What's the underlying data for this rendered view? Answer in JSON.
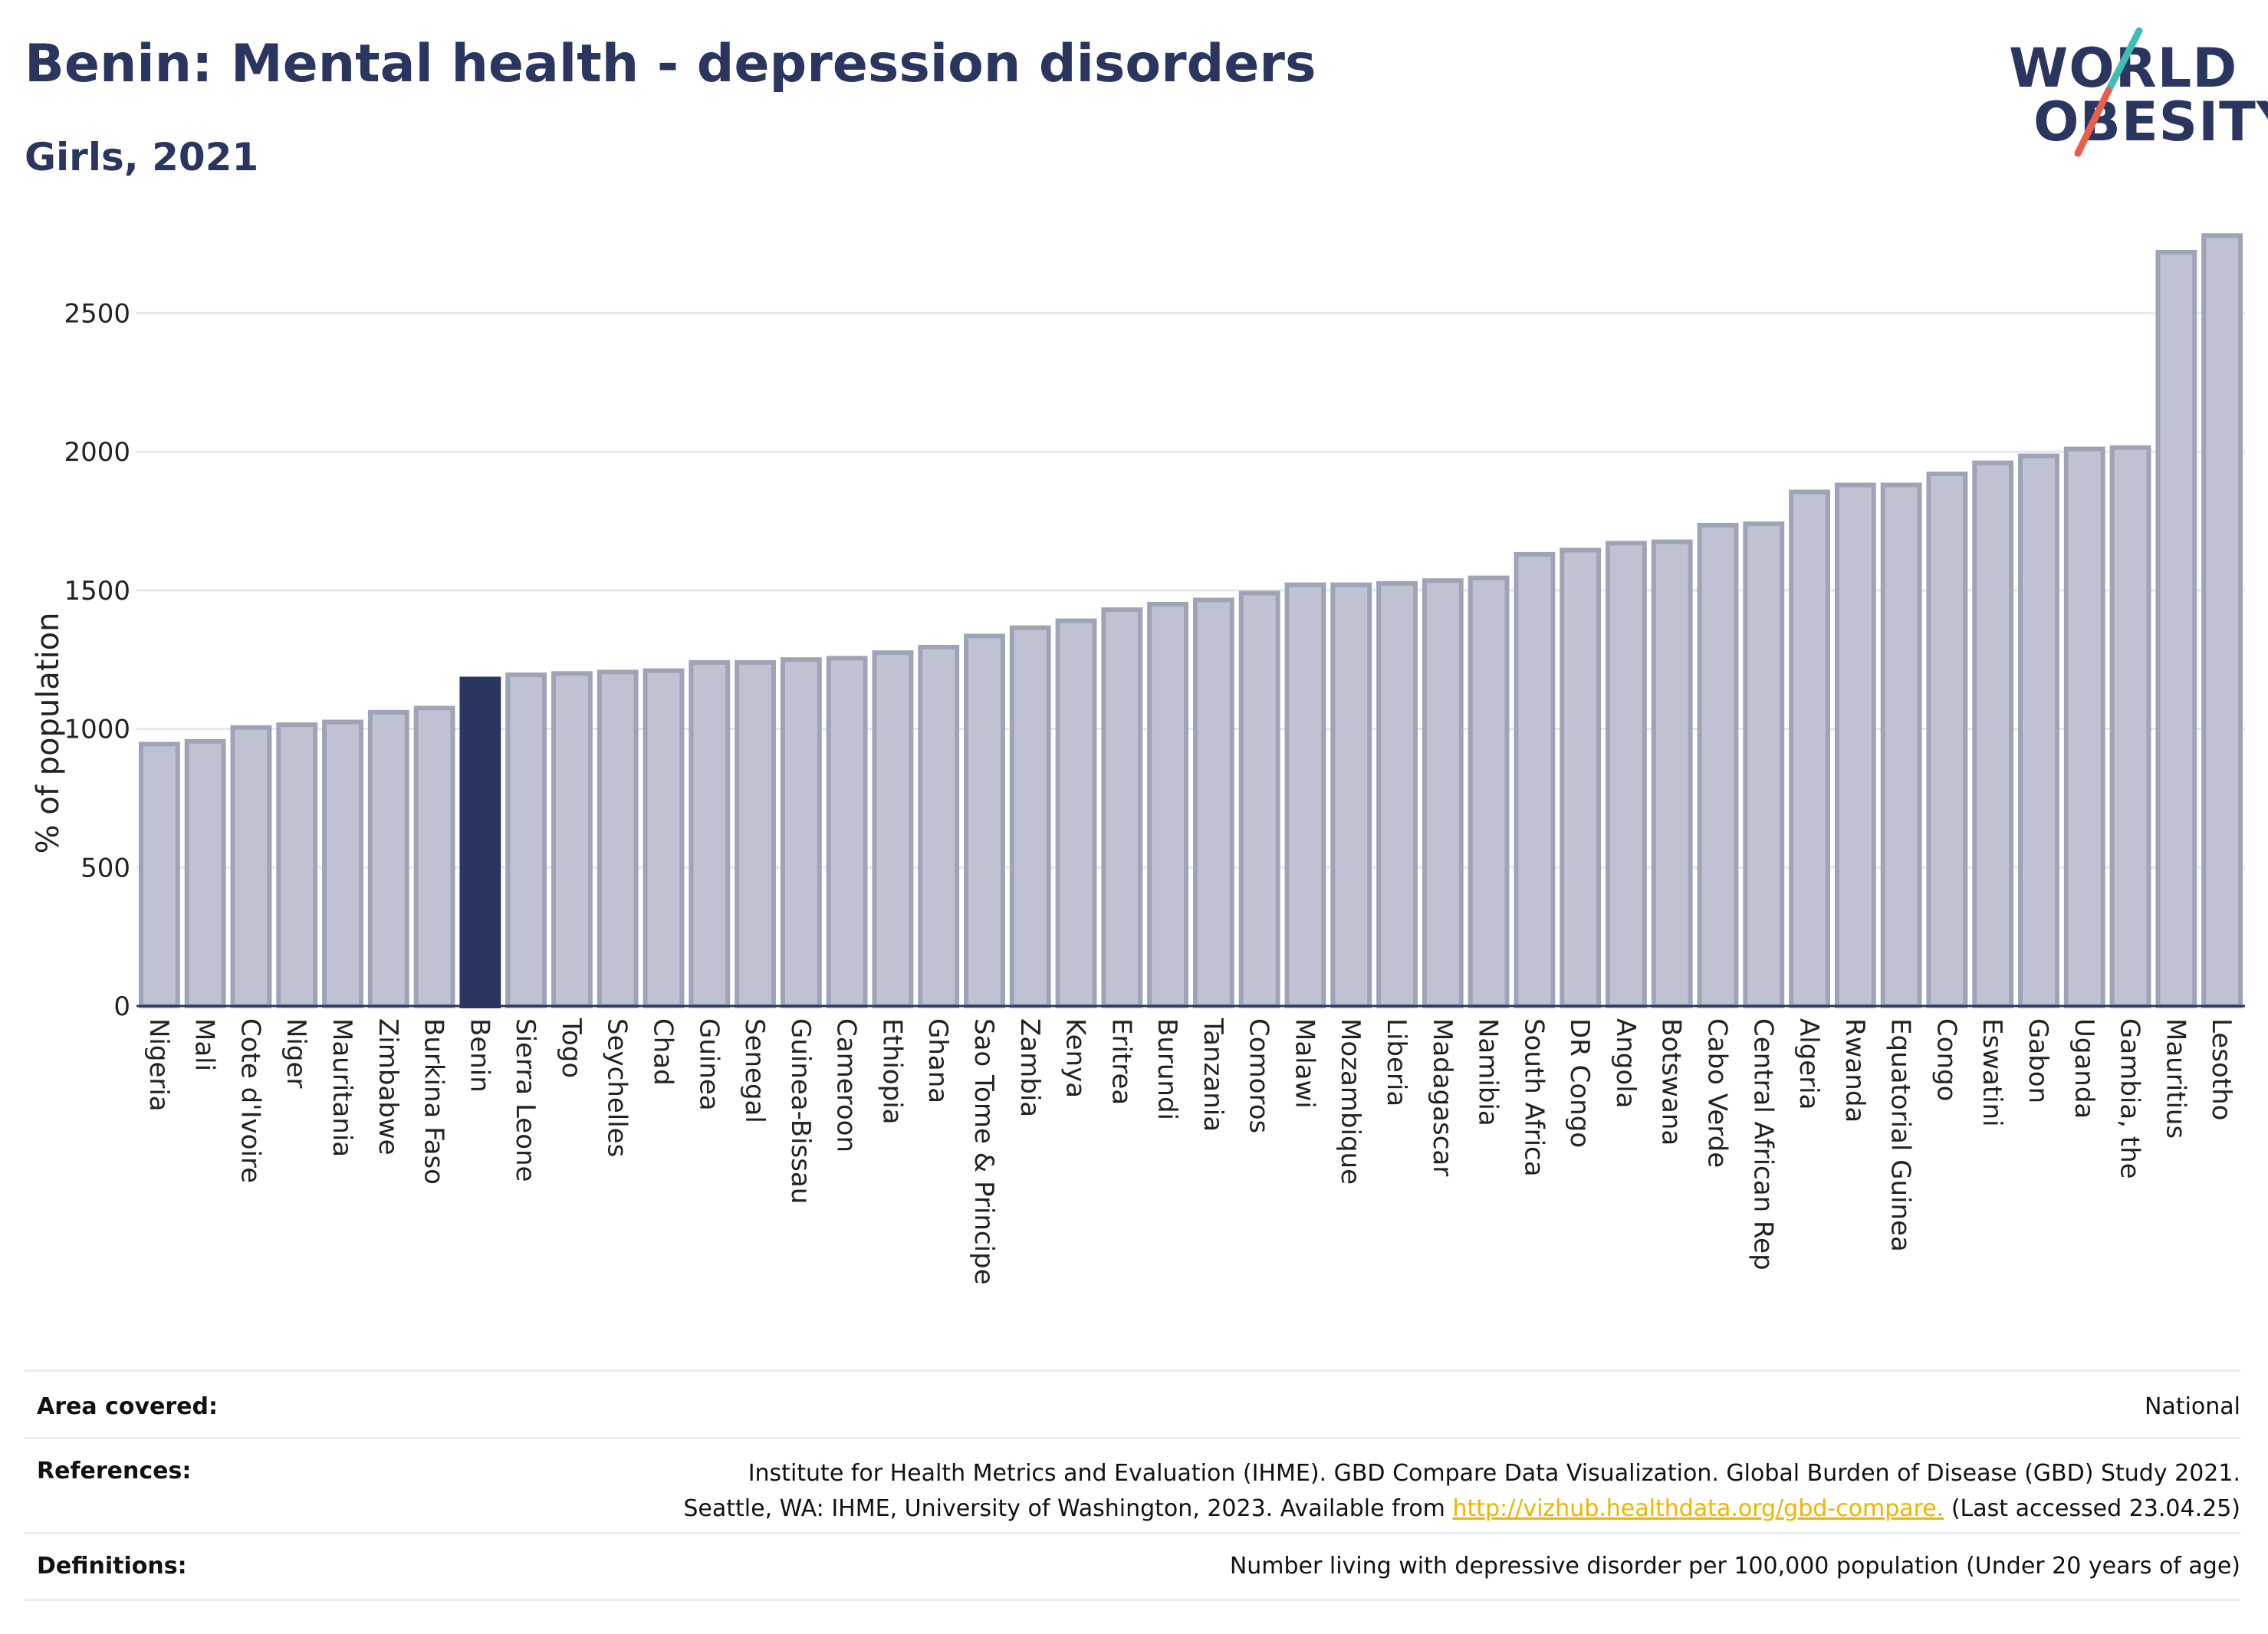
{
  "header": {
    "title": "Benin: Mental health - depression disorders",
    "subtitle": "Girls, 2021"
  },
  "logo": {
    "line1": "WORLD",
    "line2": "OBESITY"
  },
  "colors": {
    "highlight": "#2b3660",
    "bar_fill": "#bfc3d1",
    "bar_stroke": "#9ea3b8",
    "grid": "#e6e8ef",
    "logo_accent_teal": "#3dbdb5",
    "logo_accent_red": "#e8604c",
    "link": "#f0b400"
  },
  "chart_data": {
    "type": "bar",
    "ylabel": "% of population",
    "ylim": [
      0,
      2800
    ],
    "yticks": [
      0,
      500,
      1000,
      1500,
      2000,
      2500
    ],
    "grid": true,
    "highlight": "Benin",
    "categories": [
      "Nigeria",
      "Mali",
      "Cote d'Ivoire",
      "Niger",
      "Mauritania",
      "Zimbabwe",
      "Burkina Faso",
      "Benin",
      "Sierra Leone",
      "Togo",
      "Seychelles",
      "Chad",
      "Guinea",
      "Senegal",
      "Guinea-Bissau",
      "Cameroon",
      "Ethiopia",
      "Ghana",
      "Sao Tome & Principe",
      "Zambia",
      "Kenya",
      "Eritrea",
      "Burundi",
      "Tanzania",
      "Comoros",
      "Malawi",
      "Mozambique",
      "Liberia",
      "Madagascar",
      "Namibia",
      "South Africa",
      "DR Congo",
      "Angola",
      "Botswana",
      "Cabo Verde",
      "Central African Rep",
      "Algeria",
      "Rwanda",
      "Equatorial Guinea",
      "Congo",
      "Eswatini",
      "Gabon",
      "Uganda",
      "Gambia, the",
      "Mauritius",
      "Lesotho"
    ],
    "values": [
      945,
      955,
      1005,
      1015,
      1025,
      1060,
      1075,
      1180,
      1195,
      1200,
      1205,
      1210,
      1240,
      1240,
      1250,
      1255,
      1275,
      1295,
      1335,
      1365,
      1390,
      1430,
      1450,
      1465,
      1490,
      1520,
      1520,
      1525,
      1535,
      1545,
      1630,
      1645,
      1670,
      1675,
      1735,
      1740,
      1855,
      1880,
      1880,
      1920,
      1960,
      1985,
      2010,
      2015,
      2720,
      2780
    ]
  },
  "meta": {
    "area_label": "Area covered:",
    "area_value": "National",
    "references_label": "References:",
    "references_line1": "Institute for Health Metrics and Evaluation (IHME). GBD Compare Data Visualization. Global Burden of Disease (GBD) Study 2021.",
    "references_line2_prefix": "Seattle, WA: IHME, University of Washington, 2023. Available from ",
    "references_link": "http://vizhub.healthdata.org/gbd-compare.",
    "references_line2_suffix": " (Last accessed 23.04.25)",
    "definitions_label": "Definitions:",
    "definitions_value": "Number living with depressive disorder per 100,000 population (Under 20 years of age)"
  }
}
